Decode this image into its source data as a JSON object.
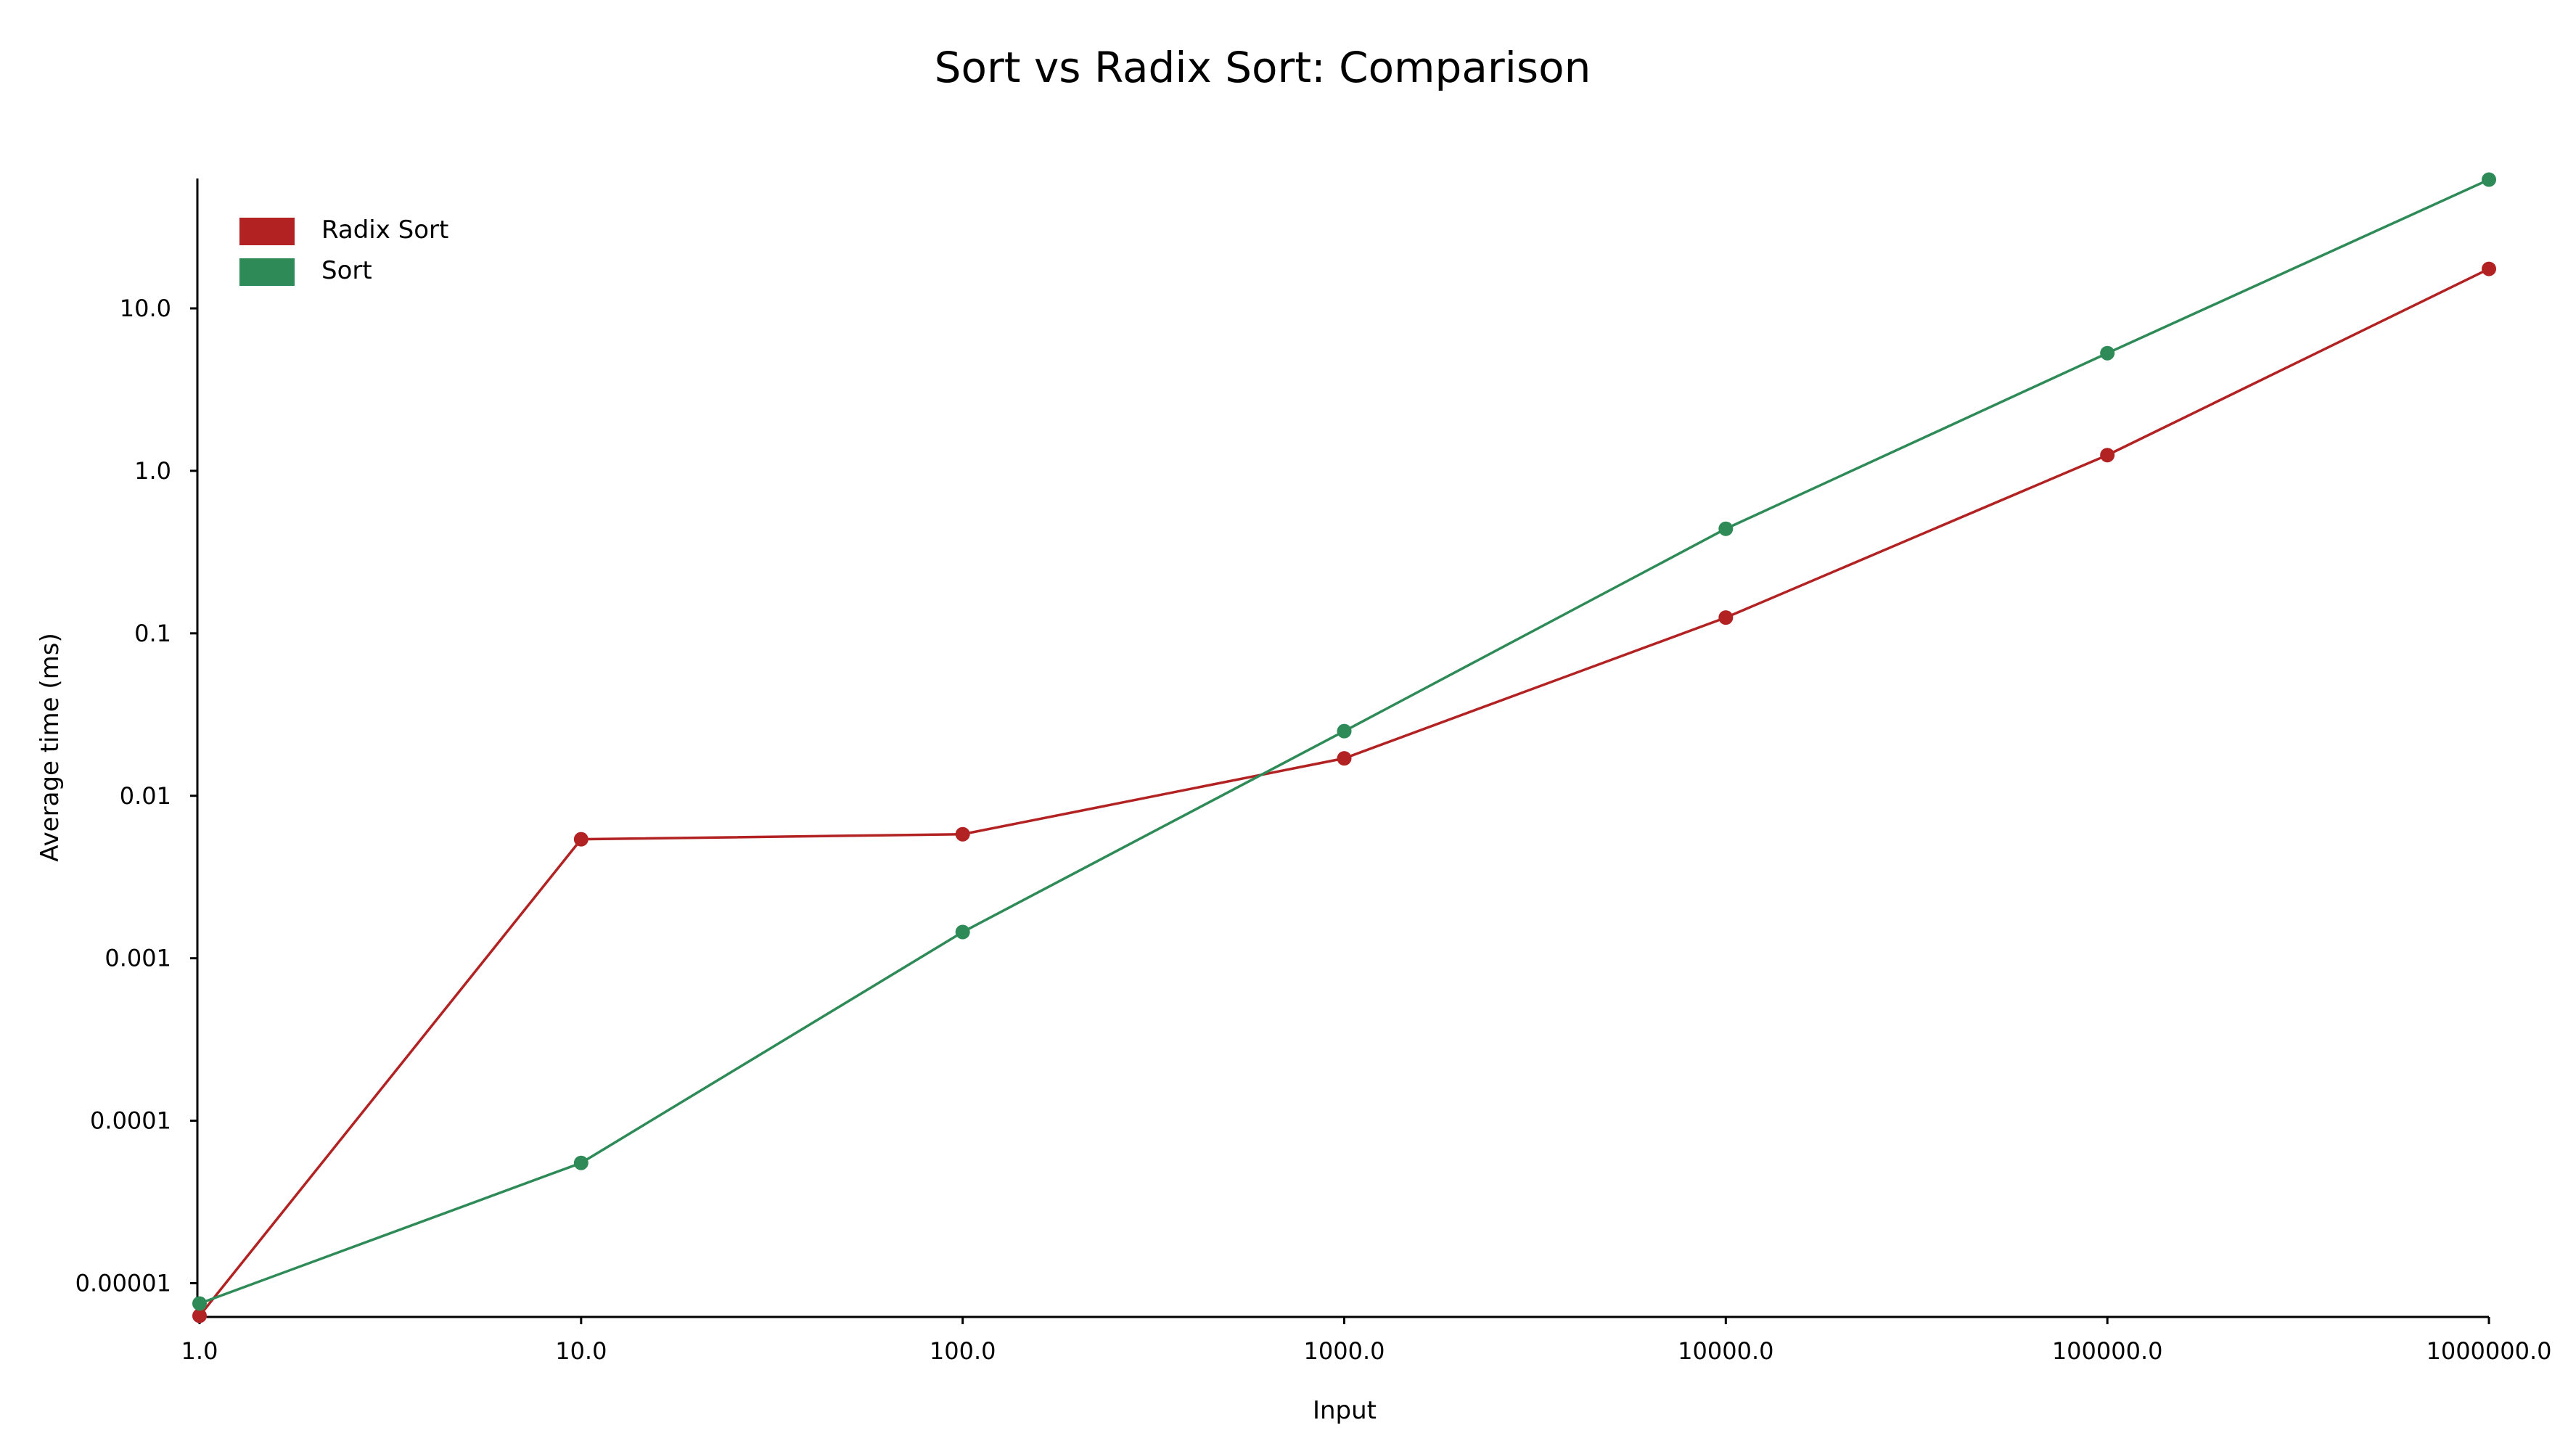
{
  "chart_data": {
    "type": "line",
    "title": "Sort vs Radix Sort: Comparison",
    "xlabel": "Input",
    "ylabel": "Average time (ms)",
    "x_scale": "log",
    "y_scale": "log",
    "x": [
      1.0,
      10.0,
      100.0,
      1000.0,
      10000.0,
      100000.0,
      1000000.0
    ],
    "x_tick_labels": [
      "1.0",
      "10.0",
      "100.0",
      "1000.0",
      "10000.0",
      "100000.0",
      "1000000.0"
    ],
    "y_ticks": [
      1e-05,
      0.0001,
      0.001,
      0.01,
      0.1,
      1.0,
      10.0
    ],
    "y_tick_labels": [
      "0.00001",
      "0.0001",
      "0.001",
      "0.01",
      "0.1",
      "1.0",
      "10.0"
    ],
    "xlim": [
      1.0,
      1000000.0
    ],
    "ylim": [
      6.2e-06,
      63.0
    ],
    "grid": false,
    "legend_position": "top-left",
    "series": [
      {
        "name": "Radix Sort",
        "color": "#b22222",
        "values": [
          6.3e-06,
          0.0054,
          0.0058,
          0.017,
          0.125,
          1.25,
          17.5
        ]
      },
      {
        "name": "Sort",
        "color": "#2e8b57",
        "values": [
          7.5e-06,
          5.5e-05,
          0.00145,
          0.025,
          0.44,
          5.3,
          62.0
        ]
      }
    ]
  }
}
